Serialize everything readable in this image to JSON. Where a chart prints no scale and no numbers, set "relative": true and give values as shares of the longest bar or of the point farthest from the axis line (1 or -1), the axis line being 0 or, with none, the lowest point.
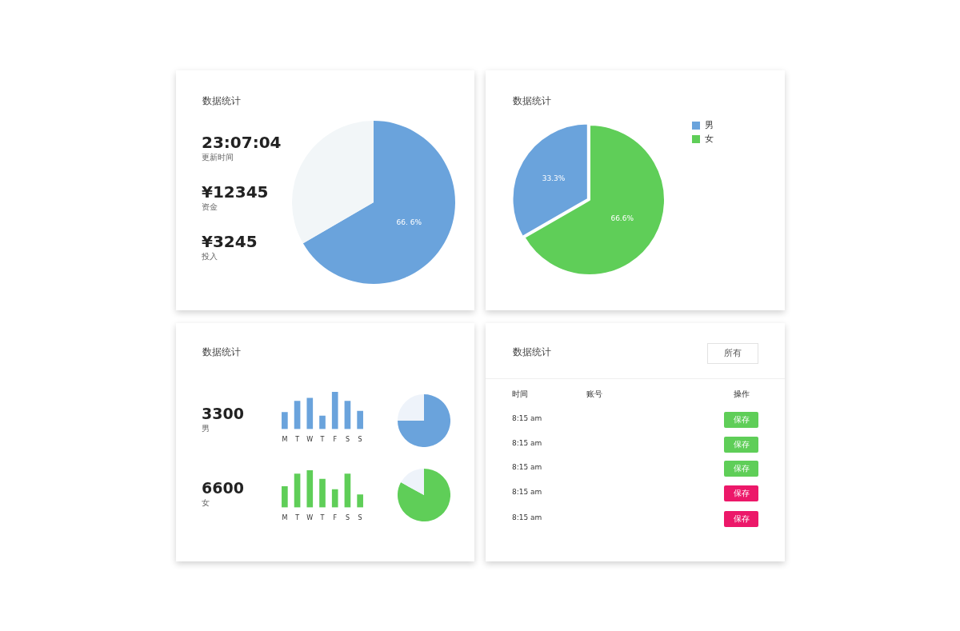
{
  "chart_data": [
    {
      "type": "pie",
      "title": "数据统计",
      "annotations": [
        "23:07:04",
        "更新时间",
        "¥12345",
        "资金",
        "¥3245",
        "投入",
        "66. 6%"
      ],
      "categories": [
        null,
        null
      ],
      "values": [
        66.6,
        33.4
      ],
      "colors": [
        "#6aa3dc",
        "#f2f6f8"
      ]
    },
    {
      "type": "pie",
      "title": "数据统计",
      "categories": [
        "男",
        "女"
      ],
      "values": [
        33.3,
        66.6
      ],
      "colors": [
        "#6aa3dc",
        "#5fce58"
      ],
      "value_labels": [
        "33.3%",
        "66.6%"
      ],
      "legend": "top right"
    },
    {
      "type": "bar",
      "title": "数据统计",
      "annotations": [
        "3300",
        "男"
      ],
      "categories": [
        "M",
        "T",
        "W",
        "T",
        "F",
        "S",
        "S"
      ],
      "values": [
        0.45,
        0.75,
        0.83,
        0.35,
        1,
        0.75,
        0.48
      ],
      "color": "#6aa3dc",
      "relative": true
    },
    {
      "type": "pie",
      "categories": [
        null,
        null
      ],
      "values": [
        75,
        25
      ],
      "colors": [
        "#6aa3dc",
        "#eef3fa"
      ]
    },
    {
      "type": "bar",
      "annotations": [
        "6600",
        "女"
      ],
      "categories": [
        "M",
        "T",
        "W",
        "T",
        "F",
        "S",
        "S"
      ],
      "values": [
        0.56,
        0.9,
        1,
        0.76,
        0.48,
        0.9,
        0.34
      ],
      "color": "#5fce58",
      "relative": true
    },
    {
      "type": "pie",
      "categories": [
        null,
        null
      ],
      "values": [
        83,
        17
      ],
      "colors": [
        "#5fce58",
        "#eef3fa"
      ]
    },
    {
      "type": "other",
      "title": "数据统计",
      "annotations": [
        "所有",
        "时间",
        "账号",
        "操作",
        "8:15 am",
        "8:15 am",
        "8:15 am",
        "8:15 am",
        "8:15 am",
        "保存",
        "保存",
        "保存",
        "保存",
        "保存"
      ]
    }
  ]
}
